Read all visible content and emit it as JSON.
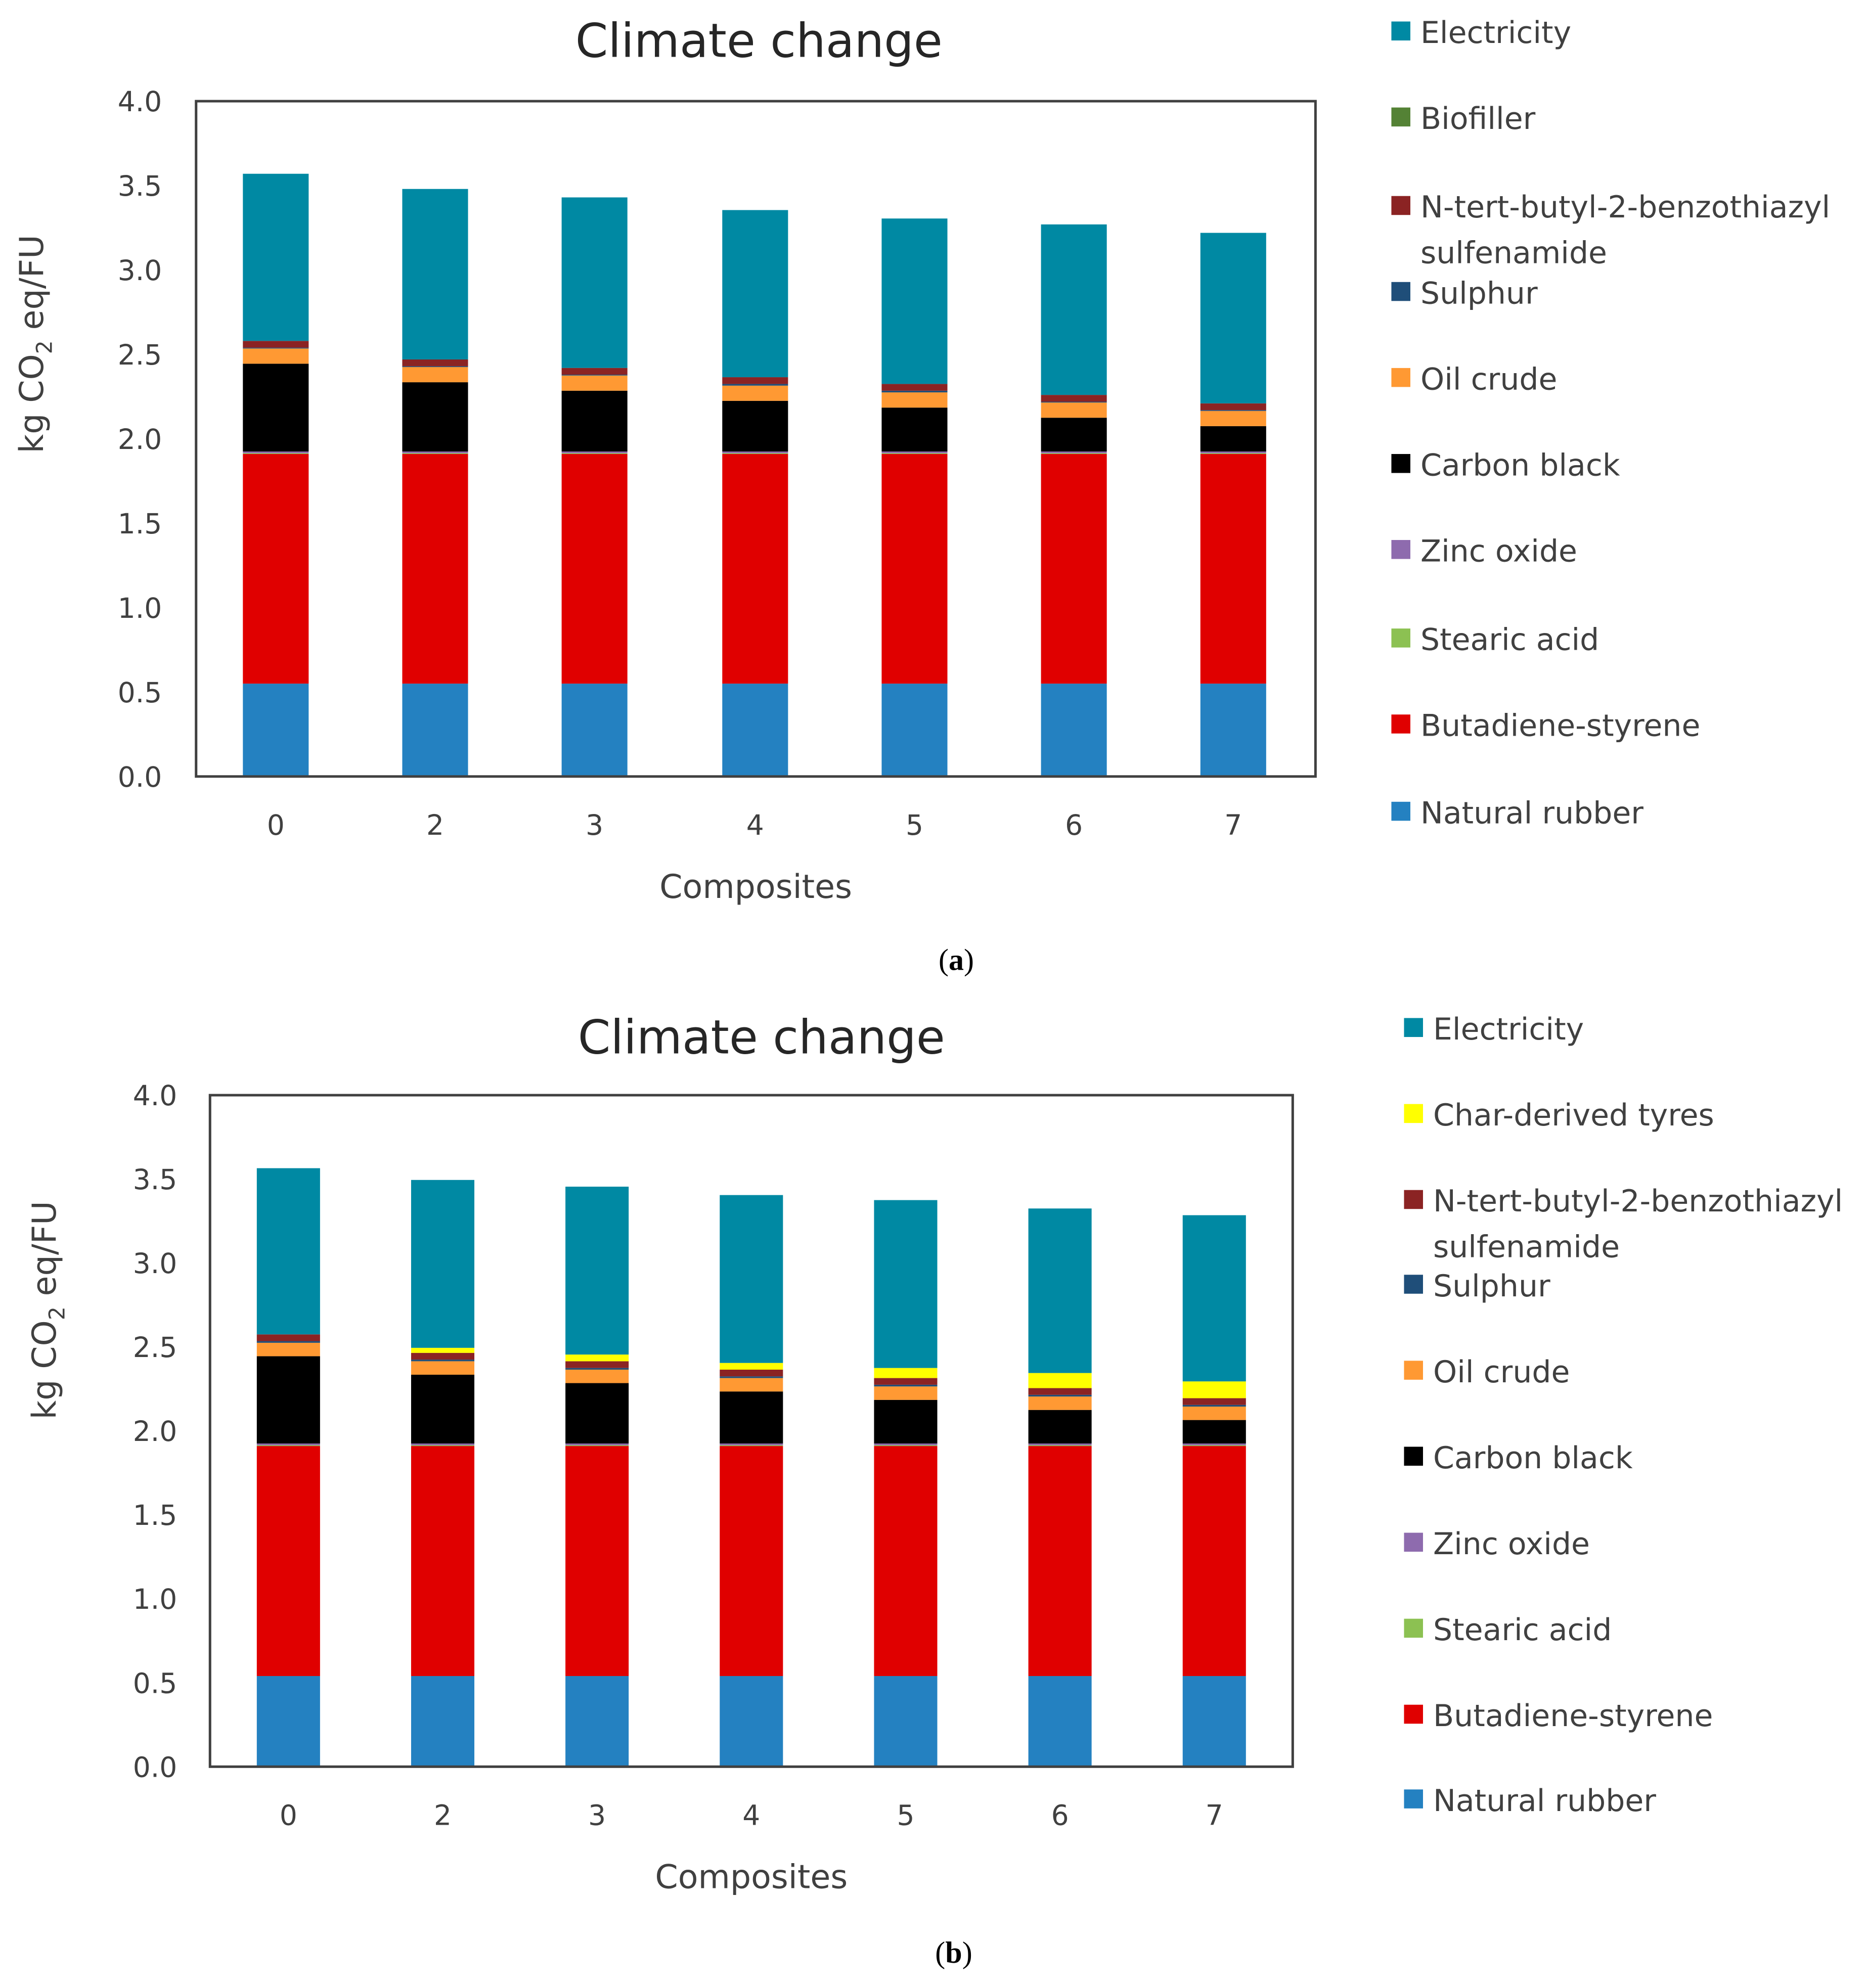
{
  "chart_data": [
    {
      "type": "bar",
      "stacked": true,
      "panel": "a",
      "caption_letter": "a",
      "title": "Climate change",
      "xlabel": "Composites",
      "ylabel": {
        "pre": "kg CO",
        "sub": "2",
        "post": " eq/FU"
      },
      "ylim": [
        0,
        4.0
      ],
      "yticks": [
        "0.0",
        "0.5",
        "1.0",
        "1.5",
        "2.0",
        "2.5",
        "3.0",
        "3.5",
        "4.0"
      ],
      "categories": [
        "0",
        "2",
        "3",
        "4",
        "5",
        "6",
        "7"
      ],
      "legend_position": "right",
      "series": [
        {
          "name": "Natural rubber",
          "color": "#2481C1",
          "values": [
            0.55,
            0.55,
            0.55,
            0.55,
            0.55,
            0.55,
            0.55
          ]
        },
        {
          "name": "Butadiene-styrene",
          "color": "#E00000",
          "values": [
            1.36,
            1.36,
            1.36,
            1.36,
            1.36,
            1.36,
            1.36
          ]
        },
        {
          "name": "Stearic acid",
          "color": "#8CC152",
          "values": [
            0.005,
            0.005,
            0.005,
            0.005,
            0.005,
            0.005,
            0.005
          ]
        },
        {
          "name": "Zinc oxide",
          "color": "#8E6BAE",
          "values": [
            0.01,
            0.01,
            0.01,
            0.01,
            0.01,
            0.01,
            0.01
          ]
        },
        {
          "name": "Carbon black",
          "color": "#000000",
          "values": [
            0.52,
            0.41,
            0.36,
            0.3,
            0.26,
            0.2,
            0.15
          ]
        },
        {
          "name": "Oil crude",
          "color": "#FF9933",
          "values": [
            0.09,
            0.09,
            0.09,
            0.09,
            0.09,
            0.09,
            0.09
          ]
        },
        {
          "name": "Sulphur",
          "color": "#1F4E79",
          "values": [
            0.005,
            0.005,
            0.005,
            0.01,
            0.01,
            0.005,
            0.005
          ]
        },
        {
          "name": "N-tert-butyl-2-benzothiazyl sulfenamide",
          "color": "#8B2323",
          "values": [
            0.04,
            0.04,
            0.04,
            0.04,
            0.04,
            0.04,
            0.04
          ]
        },
        {
          "name": "Biofiller",
          "color": "#548235",
          "values": [
            0,
            0,
            0,
            0,
            0,
            0,
            0
          ]
        },
        {
          "name": "Electricity",
          "color": "#0089A3",
          "values": [
            0.99,
            1.01,
            1.01,
            0.99,
            0.98,
            1.01,
            1.01
          ]
        }
      ]
    },
    {
      "type": "bar",
      "stacked": true,
      "panel": "b",
      "caption_letter": "b",
      "title": "Climate change",
      "xlabel": "Composites",
      "ylabel": {
        "pre": "kg CO",
        "sub": "2",
        "post": " eq/FU"
      },
      "ylim": [
        0,
        4.0
      ],
      "yticks": [
        "0.0",
        "0.5",
        "1.0",
        "1.5",
        "2.0",
        "2.5",
        "3.0",
        "3.5",
        "4.0"
      ],
      "categories": [
        "0",
        "2",
        "3",
        "4",
        "5",
        "6",
        "7"
      ],
      "legend_position": "right",
      "series": [
        {
          "name": "Natural rubber",
          "color": "#2481C1",
          "values": [
            0.54,
            0.54,
            0.54,
            0.54,
            0.54,
            0.54,
            0.54
          ]
        },
        {
          "name": "Butadiene-styrene",
          "color": "#E00000",
          "values": [
            1.37,
            1.37,
            1.37,
            1.37,
            1.37,
            1.37,
            1.37
          ]
        },
        {
          "name": "Stearic acid",
          "color": "#8CC152",
          "values": [
            0.005,
            0.005,
            0.005,
            0.005,
            0.005,
            0.005,
            0.005
          ]
        },
        {
          "name": "Zinc oxide",
          "color": "#8E6BAE",
          "values": [
            0.01,
            0.01,
            0.01,
            0.01,
            0.01,
            0.01,
            0.01
          ]
        },
        {
          "name": "Carbon black",
          "color": "#000000",
          "values": [
            0.52,
            0.41,
            0.36,
            0.31,
            0.26,
            0.2,
            0.14
          ]
        },
        {
          "name": "Oil crude",
          "color": "#FF9933",
          "values": [
            0.08,
            0.08,
            0.08,
            0.08,
            0.08,
            0.08,
            0.08
          ]
        },
        {
          "name": "Sulphur",
          "color": "#1F4E79",
          "values": [
            0.01,
            0.01,
            0.01,
            0.01,
            0.01,
            0.01,
            0.01
          ]
        },
        {
          "name": "N-tert-butyl-2-benzothiazyl sulfenamide",
          "color": "#8B2323",
          "values": [
            0.04,
            0.04,
            0.04,
            0.04,
            0.04,
            0.04,
            0.04
          ]
        },
        {
          "name": "Char-derived tyres",
          "color": "#FFFF00",
          "values": [
            0,
            0.03,
            0.04,
            0.04,
            0.06,
            0.09,
            0.1
          ]
        },
        {
          "name": "Electricity",
          "color": "#0089A3",
          "values": [
            0.99,
            1.0,
            1.0,
            1.0,
            1.0,
            0.98,
            0.99
          ]
        }
      ]
    }
  ]
}
